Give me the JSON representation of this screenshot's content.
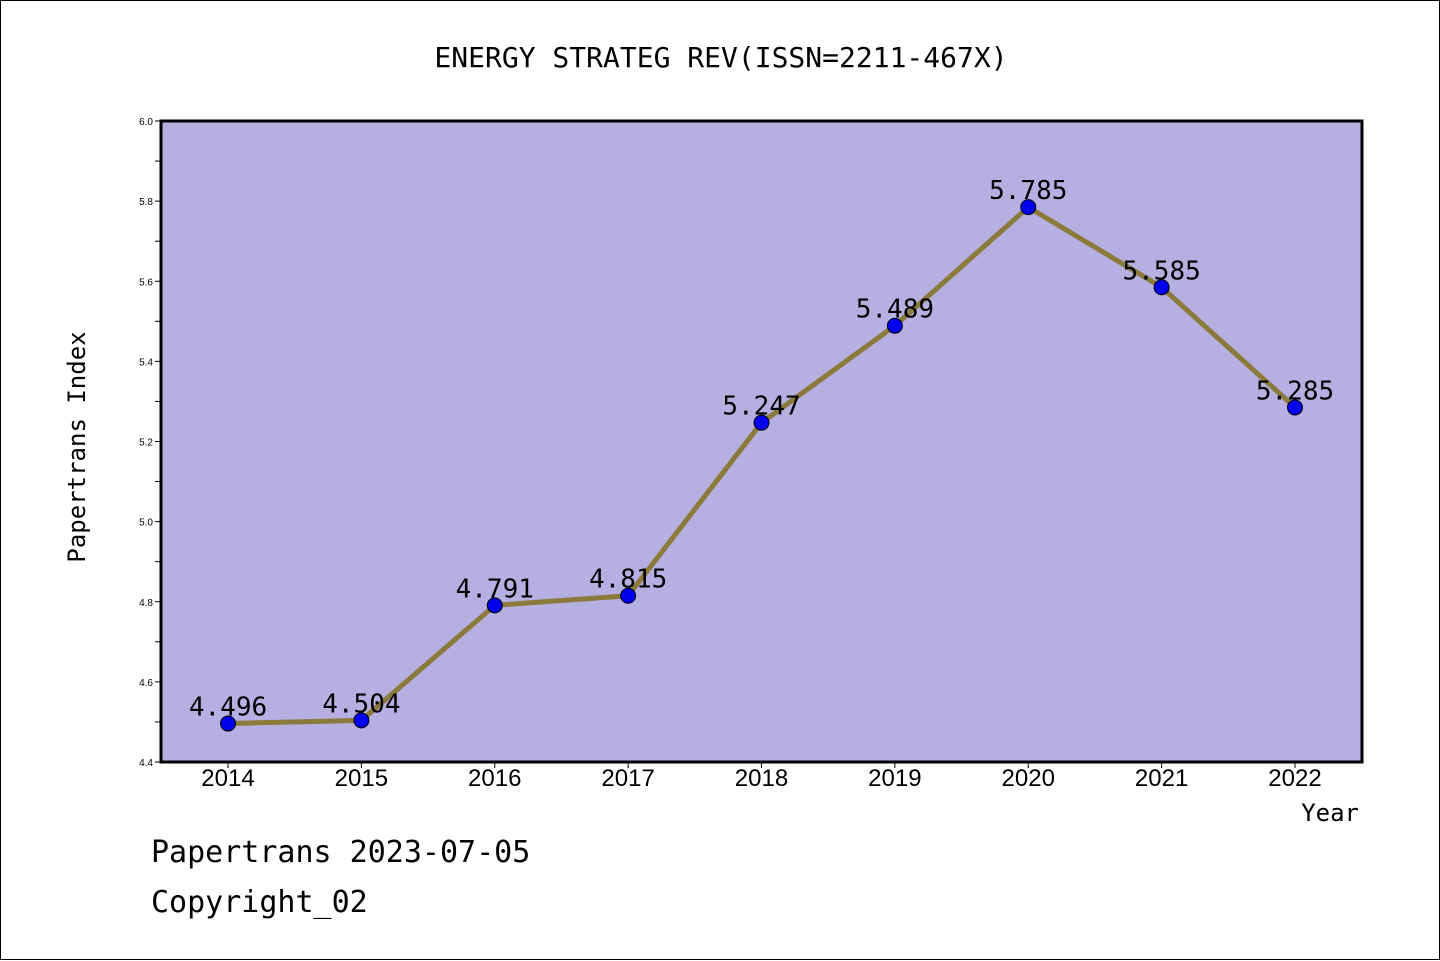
{
  "chart_data": {
    "type": "line",
    "title": "ENERGY STRATEG REV(ISSN=2211-467X)",
    "xlabel": "Year",
    "ylabel": "Papertrans Index",
    "categories": [
      "2014",
      "2015",
      "2016",
      "2017",
      "2018",
      "2019",
      "2020",
      "2021",
      "2022"
    ],
    "values": [
      4.496,
      4.504,
      4.791,
      4.815,
      5.247,
      5.489,
      5.785,
      5.585,
      5.285
    ],
    "value_labels": [
      "4.496",
      "4.504",
      "4.791",
      "4.815",
      "5.247",
      "5.489",
      "5.785",
      "5.585",
      "5.285"
    ],
    "ylim": [
      4.4,
      6.0
    ],
    "yticks": [
      "4.4",
      "4.6",
      "4.8",
      "5.0",
      "5.2",
      "5.4",
      "5.6",
      "5.8",
      "6.0"
    ],
    "grid": false,
    "colors": {
      "plot_background": "#b5afe2",
      "line": "#8b7a3a",
      "marker": "#0000ee"
    }
  },
  "footer": {
    "date_line": "Papertrans 2023-07-05",
    "copyright": "Copyright_02"
  }
}
